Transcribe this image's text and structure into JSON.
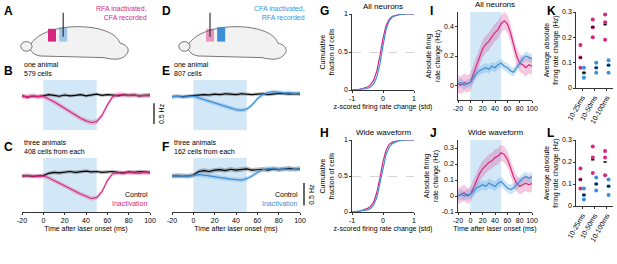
{
  "diagrams": [
    {
      "label": "A",
      "text": "RFA inactivated,\nCFA recorded",
      "color": "#d6287f"
    },
    {
      "label": "D",
      "text": "CFA inactivated,\nRFA recorded",
      "color": "#3b8fd6"
    }
  ],
  "chart_data": [
    {
      "label": "B",
      "type": "line",
      "text": "one animal\n579 cells",
      "x": [
        -20,
        -15,
        -10,
        -5,
        0,
        5,
        10,
        15,
        20,
        25,
        30,
        35,
        40,
        45,
        50,
        55,
        60,
        65,
        70,
        75,
        80,
        85,
        90,
        95,
        100
      ],
      "xlim": [
        -20,
        100
      ],
      "ylim": [
        -0.8,
        0.4
      ],
      "tick_labels": false,
      "laser": [
        0,
        50
      ],
      "scale_bar": {
        "value": 0.5,
        "label": "0.5 Hz"
      },
      "series": [
        {
          "color": "#000000",
          "sem": 0.04,
          "values": [
            0.02,
            -0.01,
            0.01,
            0,
            0.02,
            0.05,
            0.03,
            0.01,
            0.04,
            0.02,
            0.03,
            0.05,
            0.02,
            0.04,
            0.06,
            0.03,
            0.05,
            0.04,
            0.02,
            0.05,
            0.03,
            0.04,
            0.02,
            0.03,
            0.04
          ]
        },
        {
          "color": "#d6287f",
          "sem": 0.06,
          "values": [
            0.01,
            0,
            0.02,
            0,
            0.01,
            -0.05,
            -0.12,
            -0.2,
            -0.28,
            -0.36,
            -0.45,
            -0.52,
            -0.58,
            -0.62,
            -0.6,
            -0.45,
            -0.2,
            0,
            0.05,
            0.04,
            0.03,
            0.04,
            0.02,
            0.03,
            0.02
          ]
        }
      ]
    },
    {
      "label": "C",
      "type": "line",
      "text": "three animals\n408 cells from each",
      "x": [
        -20,
        -15,
        -10,
        -5,
        0,
        5,
        10,
        15,
        20,
        25,
        30,
        35,
        40,
        45,
        50,
        55,
        60,
        65,
        70,
        75,
        80,
        85,
        90,
        95,
        100
      ],
      "xlim": [
        -20,
        100
      ],
      "xticks": [
        -20,
        0,
        20,
        40,
        60,
        80,
        100
      ],
      "ylim": [
        -0.8,
        0.4
      ],
      "tick_labels": "x",
      "laser": [
        0,
        50
      ],
      "xlabel": "Time after laser onset (ms)",
      "series": [
        {
          "name": "Control",
          "color": "#000000",
          "sem": 0.04,
          "values": [
            0,
            0.01,
            -0.01,
            0,
            0.01,
            0.06,
            0.08,
            0.07,
            0.09,
            0.1,
            0.08,
            0.1,
            0.11,
            0.09,
            0.1,
            0.08,
            0.09,
            0.1,
            0.08,
            0.07,
            0.09,
            0.08,
            0.1,
            0.09,
            0.08
          ]
        },
        {
          "name": "Inactivation",
          "color": "#d6287f",
          "sem": 0.05,
          "values": [
            0,
            0.01,
            0,
            -0.01,
            0,
            -0.04,
            -0.1,
            -0.16,
            -0.22,
            -0.28,
            -0.35,
            -0.4,
            -0.45,
            -0.5,
            -0.48,
            -0.35,
            -0.1,
            0.05,
            0.07,
            0.06,
            0.08,
            0.07,
            0.06,
            0.08,
            0.07
          ]
        }
      ]
    },
    {
      "label": "E",
      "type": "line",
      "text": "one animal\n807 cells",
      "x": [
        -20,
        -15,
        -10,
        -5,
        0,
        5,
        10,
        15,
        20,
        25,
        30,
        35,
        40,
        45,
        50,
        55,
        60,
        65,
        70,
        75,
        80,
        85,
        90,
        95,
        100
      ],
      "xlim": [
        -20,
        100
      ],
      "ylim": [
        -0.8,
        0.4
      ],
      "tick_labels": false,
      "laser": [
        0,
        50
      ],
      "series": [
        {
          "color": "#000000",
          "sem": 0.04,
          "values": [
            0,
            0.01,
            0,
            0.01,
            0.02,
            0.04,
            0.05,
            0.04,
            0.06,
            0.05,
            0.07,
            0.06,
            0.05,
            0.07,
            0.06,
            0.05,
            0.06,
            0.07,
            0.05,
            0.06,
            0.08,
            0.07,
            0.06,
            0.07,
            0.06
          ]
        },
        {
          "color": "#3b8fd6",
          "sem": 0.05,
          "values": [
            0,
            0.01,
            -0.01,
            0,
            0.01,
            -0.03,
            -0.07,
            -0.12,
            -0.16,
            -0.2,
            -0.24,
            -0.28,
            -0.31,
            -0.33,
            -0.3,
            -0.2,
            -0.05,
            0.05,
            0.1,
            0.12,
            0.1,
            0.09,
            0.1,
            0.08,
            0.09
          ]
        }
      ]
    },
    {
      "label": "F",
      "type": "line",
      "text": "three animals\n162 cells from each",
      "x": [
        -20,
        -15,
        -10,
        -5,
        0,
        5,
        10,
        15,
        20,
        25,
        30,
        35,
        40,
        45,
        50,
        55,
        60,
        65,
        70,
        75,
        80,
        85,
        90,
        95,
        100
      ],
      "xlim": [
        -20,
        100
      ],
      "xticks": [
        -20,
        0,
        20,
        40,
        60,
        80,
        100
      ],
      "ylim": [
        -0.8,
        0.4
      ],
      "tick_labels": "x",
      "laser": [
        0,
        50
      ],
      "xlabel": "Time after laser onset (ms)",
      "scale_bar": {
        "value": 0.5,
        "label": "0.5 Hz"
      },
      "series": [
        {
          "name": "Control",
          "color": "#000000",
          "sem": 0.05,
          "values": [
            0,
            0.01,
            0,
            0,
            0.02,
            0.1,
            0.12,
            0.1,
            0.13,
            0.14,
            0.12,
            0.15,
            0.13,
            0.14,
            0.16,
            0.13,
            0.14,
            0.15,
            0.13,
            0.16,
            0.14,
            0.15,
            0.17,
            0.15,
            0.16
          ]
        },
        {
          "name": "Inactivation",
          "color": "#3b8fd6",
          "sem": 0.05,
          "values": [
            0,
            0,
            0.01,
            -0.01,
            0.01,
            0.03,
            0.02,
            0,
            -0.02,
            -0.04,
            -0.06,
            -0.07,
            -0.08,
            -0.09,
            -0.06,
            0,
            0.08,
            0.14,
            0.17,
            0.16,
            0.15,
            0.16,
            0.14,
            0.15,
            0.16
          ]
        }
      ]
    },
    {
      "label": "G",
      "type": "line",
      "title": "All neurons",
      "x": [
        -1,
        -0.75,
        -0.5,
        -0.4,
        -0.3,
        -0.2,
        -0.1,
        0,
        0.1,
        0.2,
        0.3,
        0.5,
        0.75,
        1
      ],
      "xlim": [
        -1,
        1
      ],
      "xticks": [
        -1,
        0,
        1
      ],
      "ylim": [
        0,
        1
      ],
      "yticks": [
        0,
        0.5,
        1
      ],
      "grid": true,
      "xlabel": "z-scored firing rate change (std)",
      "ylabel": "Cumulative\nfraction of cells",
      "series": [
        {
          "color": "#d6287f",
          "values": [
            0,
            0.01,
            0.04,
            0.07,
            0.13,
            0.25,
            0.45,
            0.68,
            0.85,
            0.93,
            0.97,
            0.99,
            1,
            1
          ]
        },
        {
          "color": "#3b8fd6",
          "values": [
            0,
            0.01,
            0.02,
            0.04,
            0.08,
            0.17,
            0.34,
            0.58,
            0.8,
            0.91,
            0.96,
            0.99,
            1,
            1
          ]
        }
      ]
    },
    {
      "label": "H",
      "type": "line",
      "title": "Wide waveform",
      "x": [
        -1,
        -0.75,
        -0.5,
        -0.4,
        -0.3,
        -0.2,
        -0.1,
        0,
        0.1,
        0.2,
        0.3,
        0.5,
        0.75,
        1
      ],
      "xlim": [
        -1,
        1
      ],
      "xticks": [
        -1,
        0,
        1
      ],
      "ylim": [
        0,
        1
      ],
      "yticks": [
        0,
        0.5,
        1
      ],
      "grid": true,
      "xlabel": "z-scored firing rate change (std)",
      "ylabel": "Cumulative\nfraction of cells",
      "series": [
        {
          "color": "#d6287f",
          "values": [
            0,
            0.01,
            0.05,
            0.08,
            0.14,
            0.27,
            0.47,
            0.7,
            0.86,
            0.94,
            0.97,
            0.99,
            1,
            1
          ]
        },
        {
          "color": "#3b8fd6",
          "values": [
            0,
            0.01,
            0.03,
            0.05,
            0.1,
            0.2,
            0.38,
            0.6,
            0.8,
            0.9,
            0.95,
            0.99,
            1,
            1
          ]
        }
      ]
    },
    {
      "label": "I",
      "type": "line",
      "title": "All neurons",
      "x": [
        -20,
        -15,
        -10,
        -5,
        0,
        5,
        10,
        15,
        20,
        25,
        30,
        35,
        40,
        45,
        50,
        55,
        60,
        65,
        70,
        75,
        80,
        85,
        90,
        95,
        100
      ],
      "xlim": [
        -20,
        100
      ],
      "xticks": [
        -20,
        0,
        20,
        40,
        60,
        80,
        100
      ],
      "ylim": [
        -0.1,
        0.5
      ],
      "yticks": [
        0,
        0.2,
        0.4
      ],
      "laser": [
        0,
        50
      ],
      "ylabel": "Absolute firing\nrate change (Hz)",
      "series": [
        {
          "color": "#d6287f",
          "sem": 0.06,
          "values": [
            0.01,
            0,
            0.02,
            0.01,
            0.02,
            0.08,
            0.14,
            0.2,
            0.25,
            0.28,
            0.3,
            0.33,
            0.36,
            0.38,
            0.42,
            0.44,
            0.42,
            0.36,
            0.28,
            0.2,
            0.15,
            0.14,
            0.12,
            0.14,
            0.13
          ]
        },
        {
          "color": "#3b8fd6",
          "sem": 0.03,
          "values": [
            0.01,
            0.02,
            0,
            0.01,
            0.02,
            0.05,
            0.08,
            0.1,
            0.11,
            0.12,
            0.11,
            0.13,
            0.12,
            0.14,
            0.15,
            0.13,
            0.12,
            0.1,
            0.09,
            0.12,
            0.15,
            0.18,
            0.2,
            0.19,
            0.18
          ]
        }
      ]
    },
    {
      "label": "J",
      "type": "line",
      "title": "Wide waveform",
      "x": [
        -20,
        -15,
        -10,
        -5,
        0,
        5,
        10,
        15,
        20,
        25,
        30,
        35,
        40,
        45,
        50,
        55,
        60,
        65,
        70,
        75,
        80,
        85,
        90,
        95,
        100
      ],
      "xlim": [
        -20,
        100
      ],
      "xticks": [
        -20,
        0,
        20,
        40,
        60,
        80,
        100
      ],
      "ylim": [
        -0.1,
        0.35
      ],
      "yticks": [
        -0.1,
        0,
        0.1,
        0.2,
        0.3
      ],
      "laser": [
        0,
        50
      ],
      "xlabel": "Time after laser onset (ms)",
      "ylabel": "Absolute firing\nrate change (Hz)",
      "series": [
        {
          "color": "#d6287f",
          "sem": 0.05,
          "values": [
            0,
            0.01,
            0.02,
            0,
            0.01,
            0.05,
            0.1,
            0.14,
            0.17,
            0.19,
            0.21,
            0.22,
            0.24,
            0.25,
            0.27,
            0.26,
            0.23,
            0.18,
            0.12,
            0.08,
            0.06,
            0.07,
            0.08,
            0.07,
            0.08
          ]
        },
        {
          "color": "#3b8fd6",
          "sem": 0.03,
          "values": [
            0,
            0.01,
            0,
            0.01,
            0.01,
            0.03,
            0.05,
            0.06,
            0.07,
            0.06,
            0.08,
            0.07,
            0.06,
            0.08,
            0.09,
            0.07,
            0.05,
            0.04,
            0.05,
            0.07,
            0.09,
            0.11,
            0.12,
            0.11,
            0.12
          ]
        }
      ]
    },
    {
      "label": "K",
      "type": "strip",
      "categories": [
        "10-25ms",
        "10-50ms",
        "10-100ms"
      ],
      "ylim": [
        0,
        0.3
      ],
      "yticks": [
        0,
        0.1,
        0.2,
        0.3
      ],
      "ylabel": "Average absolute\nfiring rate change (Hz)",
      "series": [
        {
          "color": "#d6287f",
          "values": [
            [
              0.12,
              0.17,
              0.08
            ],
            [
              0.2,
              0.24,
              0.27
            ],
            [
              0.19,
              0.26,
              0.29
            ]
          ],
          "means": [
            0.12,
            0.24,
            0.25
          ]
        },
        {
          "color": "#3b8fd6",
          "values": [
            [
              0.04,
              0.06,
              0.08
            ],
            [
              0.06,
              0.08,
              0.1
            ],
            [
              0.06,
              0.09,
              0.11
            ]
          ],
          "means": [
            0.06,
            0.08,
            0.09
          ]
        }
      ]
    },
    {
      "label": "L",
      "type": "strip",
      "categories": [
        "10-25ms",
        "10-50ms",
        "10-100ms"
      ],
      "ylim": [
        0,
        0.3
      ],
      "yticks": [
        0,
        0.1,
        0.2,
        0.3
      ],
      "ylabel": "Average absolute\nfiring rate change (Hz)",
      "series": [
        {
          "color": "#d6287f",
          "values": [
            [
              0.08,
              0.12,
              0.17
            ],
            [
              0.15,
              0.22,
              0.27
            ],
            [
              0.14,
              0.22,
              0.25
            ]
          ],
          "means": [
            0.12,
            0.21,
            0.2
          ]
        },
        {
          "color": "#3b8fd6",
          "values": [
            [
              0.03,
              0.05,
              0.08
            ],
            [
              0.07,
              0.1,
              0.13
            ],
            [
              0.05,
              0.09,
              0.12
            ]
          ],
          "means": [
            0.05,
            0.1,
            0.09
          ]
        }
      ]
    }
  ]
}
